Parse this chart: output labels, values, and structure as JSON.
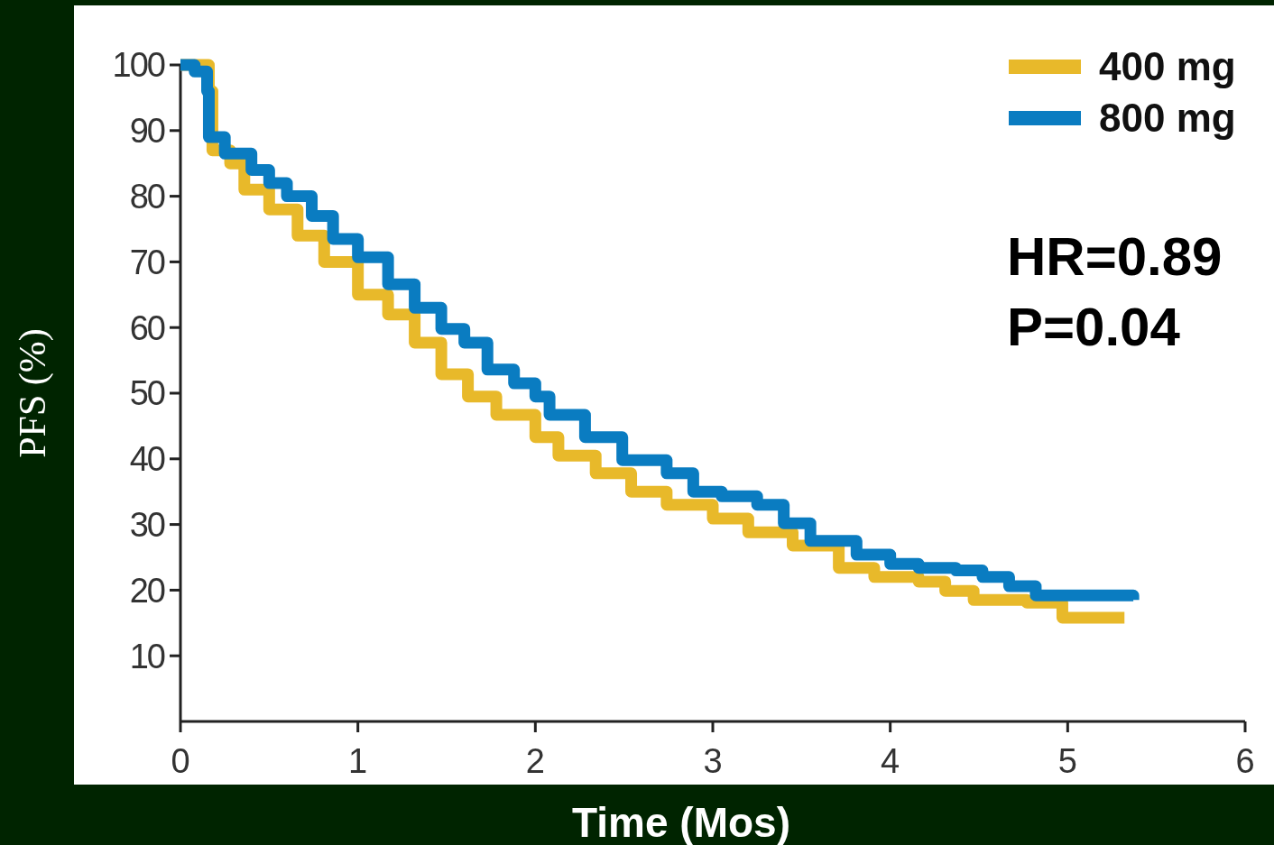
{
  "chart_data": {
    "type": "step",
    "xlabel": "Time (Mos)",
    "ylabel": "PFS (%)",
    "xlim": [
      0,
      6
    ],
    "xticks": [
      0,
      1,
      2,
      3,
      4,
      5,
      6
    ],
    "ylim": [
      0,
      100
    ],
    "yticks": [
      10,
      20,
      30,
      40,
      50,
      60,
      70,
      80,
      90,
      100
    ],
    "grid": false,
    "legend": "top right",
    "line_style": "solid",
    "marker": "none",
    "annotations": [
      "HR=0.89",
      "P=0.04"
    ],
    "series": [
      {
        "name": "400 mg",
        "color": "#e8b92a",
        "x": [
          0,
          0.16,
          0.18,
          0.28,
          0.36,
          0.5,
          0.66,
          0.81,
          1.0,
          1.17,
          1.32,
          1.47,
          1.62,
          1.78,
          2.0,
          2.13,
          2.34,
          2.54,
          2.74,
          3.0,
          3.2,
          3.45,
          3.71,
          3.91,
          4.16,
          4.31,
          4.47,
          4.77,
          4.97,
          5.32
        ],
        "values": [
          100,
          96,
          87,
          85,
          81,
          78,
          74,
          70,
          65,
          62,
          57.7,
          52.9,
          49.5,
          46.7,
          43.3,
          40.5,
          37.8,
          35,
          33,
          30.9,
          28.8,
          26.8,
          23.4,
          22,
          21.3,
          19.9,
          18.5,
          18.1,
          15.8,
          15.8
        ]
      },
      {
        "name": "800 mg",
        "color": "#0a7cc1",
        "x": [
          0,
          0.08,
          0.15,
          0.16,
          0.25,
          0.4,
          0.5,
          0.6,
          0.74,
          0.86,
          1.0,
          1.17,
          1.32,
          1.47,
          1.6,
          1.73,
          1.88,
          2.0,
          2.08,
          2.28,
          2.49,
          2.74,
          2.89,
          3.05,
          3.25,
          3.4,
          3.55,
          3.81,
          4.0,
          4.16,
          4.37,
          4.52,
          4.67,
          4.82,
          5.37
        ],
        "values": [
          100,
          99,
          96,
          89,
          86.5,
          84,
          82,
          80,
          77,
          73.5,
          70.7,
          66.6,
          63,
          59.8,
          57.7,
          53.6,
          51.5,
          49.5,
          46.7,
          43.3,
          39.8,
          37.8,
          35,
          34.3,
          33,
          30.2,
          27.5,
          25.4,
          24,
          23.4,
          23,
          22,
          20.6,
          19.2,
          18.5
        ]
      }
    ]
  }
}
